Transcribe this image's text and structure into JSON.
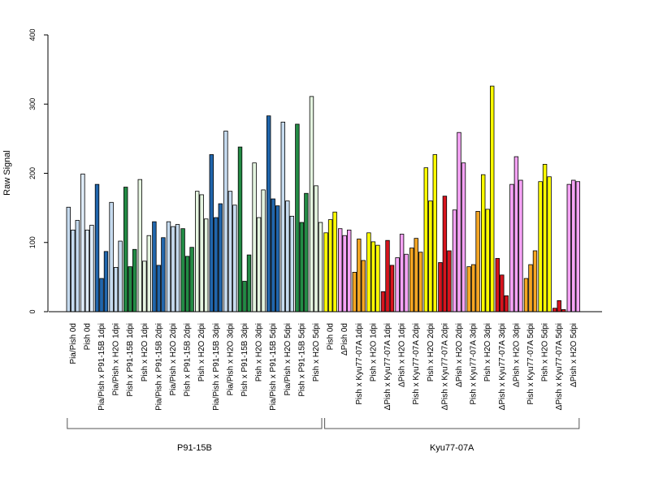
{
  "chart_data": {
    "type": "bar",
    "ylabel": "Raw Signal",
    "ylim": [
      0,
      400
    ],
    "yticks": [
      0,
      100,
      200,
      300,
      400
    ],
    "bars_per_category": 3,
    "categories": [
      {
        "label": "Pia/Pish 0d",
        "color": "#c6dbef",
        "values": [
          151,
          118,
          132
        ]
      },
      {
        "label": "Pish 0d",
        "color": "#deebf7",
        "values": [
          199,
          118,
          125
        ]
      },
      {
        "label": "Pia/Pish x P91-15B 1dpi",
        "color": "#2166ac",
        "values": [
          184,
          48,
          87
        ]
      },
      {
        "label": "Pia/Pish x H2O 1dpi",
        "color": "#c6dbef",
        "values": [
          158,
          64,
          102
        ]
      },
      {
        "label": "Pish x P91-15B 1dpi",
        "color": "#238b45",
        "values": [
          180,
          65,
          90
        ]
      },
      {
        "label": "Pish x H2O 1dpi",
        "color": "#e5f5e0",
        "values": [
          191,
          73,
          110
        ]
      },
      {
        "label": "Pia/Pish x P91-15B 2dpi",
        "color": "#2166ac",
        "values": [
          130,
          67,
          107
        ]
      },
      {
        "label": "Pia/Pish x H2O 2dpi",
        "color": "#c6dbef",
        "values": [
          130,
          123,
          126
        ]
      },
      {
        "label": "Pish x P91-15B 2dpi",
        "color": "#238b45",
        "values": [
          120,
          80,
          93
        ]
      },
      {
        "label": "Pish x H2O 2dpi",
        "color": "#e5f5e0",
        "values": [
          174,
          169,
          134
        ]
      },
      {
        "label": "Pia/Pish x P91-15B 3dpi",
        "color": "#2166ac",
        "values": [
          227,
          136,
          156
        ]
      },
      {
        "label": "Pia/Pish x H2O 3dpi",
        "color": "#c6dbef",
        "values": [
          261,
          174,
          154
        ]
      },
      {
        "label": "Pish x P91-15B 3dpi",
        "color": "#238b45",
        "values": [
          238,
          44,
          82
        ]
      },
      {
        "label": "Pish x H2O 3dpi",
        "color": "#e5f5e0",
        "values": [
          215,
          136,
          176
        ]
      },
      {
        "label": "Pia/Pish x P91-15B 5dpi",
        "color": "#2166ac",
        "values": [
          283,
          163,
          153
        ]
      },
      {
        "label": "Pia/Pish x H2O 5dpi",
        "color": "#c6dbef",
        "values": [
          274,
          160,
          138
        ]
      },
      {
        "label": "Pish x P91-15B 5dpi",
        "color": "#238b45",
        "values": [
          271,
          129,
          171
        ]
      },
      {
        "label": "Pish x H2O 5dpi",
        "color": "#e5f5e0",
        "values": [
          311,
          182,
          129
        ]
      },
      {
        "label": "Pish 0d",
        "color": "#ffff00",
        "values": [
          114,
          133,
          144
        ]
      },
      {
        "label": "ΔPish 0d",
        "color": "#f5a3f5",
        "values": [
          120,
          110,
          118
        ]
      },
      {
        "label": "Pish x Kyu77-07A 1dpi",
        "color": "#f5a623",
        "values": [
          57,
          105,
          74
        ]
      },
      {
        "label": "Pish x H2O 1dpi",
        "color": "#ffff00",
        "values": [
          114,
          101,
          96
        ]
      },
      {
        "label": "ΔPish x Kyu77-07A 1dpi",
        "color": "#d7141e",
        "values": [
          29,
          103,
          67
        ]
      },
      {
        "label": "ΔPish x H2O 1dpi",
        "color": "#f5a3f5",
        "values": [
          78,
          112,
          83
        ]
      },
      {
        "label": "Pish x Kyu77-07A 2dpi",
        "color": "#f5a623",
        "values": [
          92,
          106,
          86
        ]
      },
      {
        "label": "Pish x H2O 2dpi",
        "color": "#ffff00",
        "values": [
          208,
          160,
          227
        ]
      },
      {
        "label": "ΔPish x Kyu77-07A 2dpi",
        "color": "#d7141e",
        "values": [
          71,
          167,
          88
        ]
      },
      {
        "label": "ΔPish x H2O 2dpi",
        "color": "#f5a3f5",
        "values": [
          147,
          259,
          215
        ]
      },
      {
        "label": "Pish x Kyu77-07A 3dpi",
        "color": "#f5a623",
        "values": [
          65,
          68,
          145
        ]
      },
      {
        "label": "Pish x H2O 3dpi",
        "color": "#ffff00",
        "values": [
          198,
          148,
          326
        ]
      },
      {
        "label": "ΔPish x Kyu77-07A 3dpi",
        "color": "#d7141e",
        "values": [
          77,
          53,
          23
        ]
      },
      {
        "label": "ΔPish x H2O 3dpi",
        "color": "#f5a3f5",
        "values": [
          184,
          224,
          190
        ]
      },
      {
        "label": "Pish x Kyu77-07A 5dpi",
        "color": "#f5a623",
        "values": [
          48,
          68,
          88
        ]
      },
      {
        "label": "Pish x H2O 5dpi",
        "color": "#ffff00",
        "values": [
          188,
          213,
          195
        ]
      },
      {
        "label": "ΔPish x Kyu77-07A 5dpi",
        "color": "#d7141e",
        "values": [
          5,
          16,
          3
        ]
      },
      {
        "label": "ΔPish x H2O 5dpi",
        "color": "#f5a3f5",
        "values": [
          184,
          190,
          188
        ]
      }
    ],
    "groups": [
      {
        "label": "P91-15B",
        "first": 0,
        "last": 17
      },
      {
        "label": "Kyu77-07A",
        "first": 18,
        "last": 35
      }
    ]
  }
}
